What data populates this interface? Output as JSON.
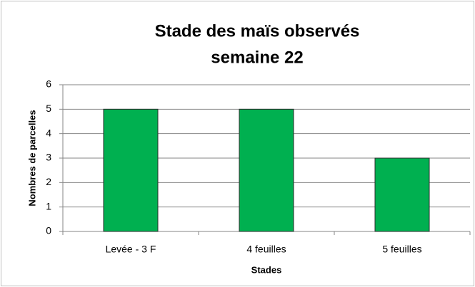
{
  "chart_data": {
    "type": "bar",
    "title": [
      "Stade des maïs observés",
      "semaine 22"
    ],
    "x_label": "Stades",
    "y_label": "Nombres de parcelles",
    "categories": [
      "Levée - 3 F",
      "4 feuilles",
      "5 feuilles"
    ],
    "values": [
      5,
      5,
      3
    ],
    "color": "#00b050",
    "ylim": [
      0,
      6
    ],
    "yticks": [
      0,
      1,
      2,
      3,
      4,
      5,
      6
    ],
    "grid": true
  }
}
